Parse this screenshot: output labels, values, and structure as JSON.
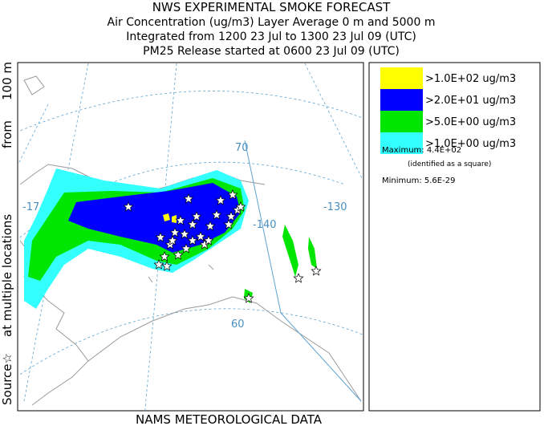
{
  "header": {
    "title": "NWS EXPERIMENTAL SMOKE FORECAST",
    "lines": [
      "Air Concentration (ug/m3) Layer Average    0 m and  5000 m",
      "Integrated from 1200 23 Jul to 1300 23 Jul 09 (UTC)",
      "PM25 Release started at 0600 23 Jul 09 (UTC)"
    ]
  },
  "side_label": {
    "source": "Source☆",
    "locations": "at multiple locations",
    "from": "from",
    "height": "100 m"
  },
  "footer": "NAMS METEOROLOGICAL DATA",
  "legend": {
    "items": [
      {
        "label": ">1.0E+02 ug/m3",
        "color": "#ffff00"
      },
      {
        "label": ">2.0E+01 ug/m3",
        "color": "#0000ff"
      },
      {
        "label": ">5.0E+00 ug/m3",
        "color": "#00e600"
      },
      {
        "label": ">1.0E+00 ug/m3",
        "color": "#33ffff"
      }
    ],
    "maximum": "Maximum: 4.4E+02",
    "maximum_note": "(identified as a square)",
    "minimum": "Minimum: 5.6E-29"
  },
  "map": {
    "labels": [
      "70",
      "-130",
      "-140",
      "60",
      "-17"
    ]
  }
}
